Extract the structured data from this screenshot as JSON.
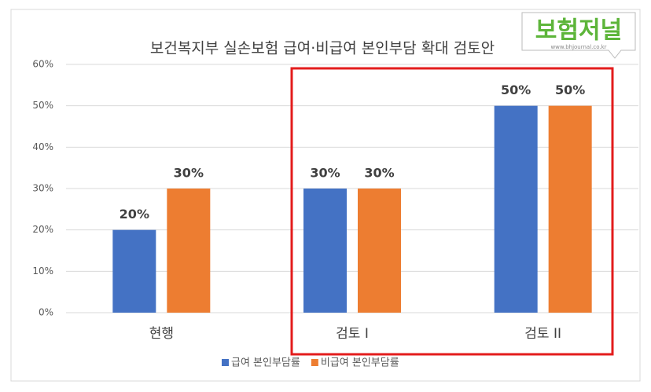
{
  "chart_data": {
    "type": "bar",
    "title": "보건복지부  실손보험 급여·비급여 본인부담 확대 검토안",
    "categories": [
      "현행",
      "검토 I",
      "검토 II"
    ],
    "series": [
      {
        "name": "급여 본인부담률",
        "color": "#4472c4",
        "values": [
          20,
          30,
          50
        ],
        "value_labels": [
          "20%",
          "30%",
          "50%"
        ]
      },
      {
        "name": "비급여 본인부담률",
        "color": "#ed7d31",
        "values": [
          30,
          30,
          50
        ],
        "value_labels": [
          "30%",
          "30%",
          "50%"
        ]
      }
    ],
    "ylim": [
      0,
      60
    ],
    "yticks": [
      {
        "value": 0,
        "label": "0%"
      },
      {
        "value": 10,
        "label": "10%"
      },
      {
        "value": 20,
        "label": "20%"
      },
      {
        "value": 30,
        "label": "30%"
      },
      {
        "value": 40,
        "label": "40%"
      },
      {
        "value": 50,
        "label": "50%"
      },
      {
        "value": 60,
        "label": "60%"
      }
    ],
    "grid": true,
    "legend": "bottom"
  },
  "logo": {
    "name": "보험저널",
    "url": "www.bhjournal.co.kr"
  }
}
